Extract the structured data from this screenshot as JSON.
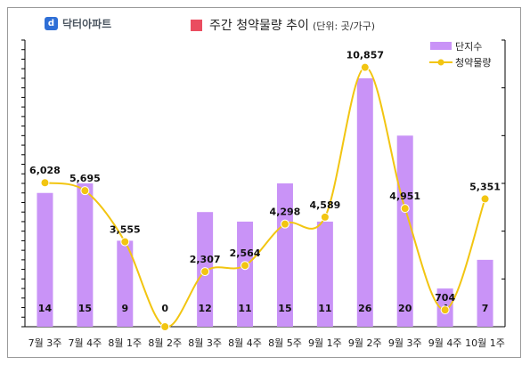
{
  "brand": {
    "logo_text": "닥터아파트",
    "logo_glyph": "d",
    "logo_color": "#2f6fd6"
  },
  "title": "주간 청약물량 추이",
  "unit_note": "(단위: 곳/가구)",
  "colors": {
    "bar": "#c993f7",
    "line": "#f2c511",
    "title_marker": "#ea4d60"
  },
  "chart_data": {
    "type": "bar",
    "categories": [
      "7월 3주",
      "7월 4주",
      "8월 1주",
      "8월 2주",
      "8월 3주",
      "8월 4주",
      "8월 5주",
      "9월 1주",
      "9월 2주",
      "9월 3주",
      "9월 4주",
      "10월 1주"
    ],
    "series": [
      {
        "name": "단지수",
        "type": "bar",
        "axis": "left",
        "values": [
          14,
          15,
          9,
          0,
          12,
          11,
          15,
          11,
          26,
          20,
          4,
          7
        ]
      },
      {
        "name": "청약물량",
        "type": "line",
        "axis": "right",
        "values": [
          6028,
          5695,
          3555,
          0,
          2307,
          2564,
          4298,
          4589,
          10857,
          4951,
          704,
          5351
        ]
      }
    ],
    "value_labels": {
      "bars": [
        "14",
        "15",
        "9",
        "0",
        "12",
        "11",
        "15",
        "11",
        "26",
        "20",
        "4",
        "7"
      ],
      "line": [
        "6,028",
        "5,695",
        "3,555",
        "",
        "2,307",
        "2,564",
        "4,298",
        "4,589",
        "10,857",
        "4,951",
        "704",
        "5,351"
      ]
    },
    "left_axis": {
      "min": 0,
      "max": 30,
      "ticks": 30
    },
    "right_axis": {
      "min": 0,
      "max": 12000,
      "ticks": 6
    },
    "legend": "top-right",
    "grid": false
  }
}
